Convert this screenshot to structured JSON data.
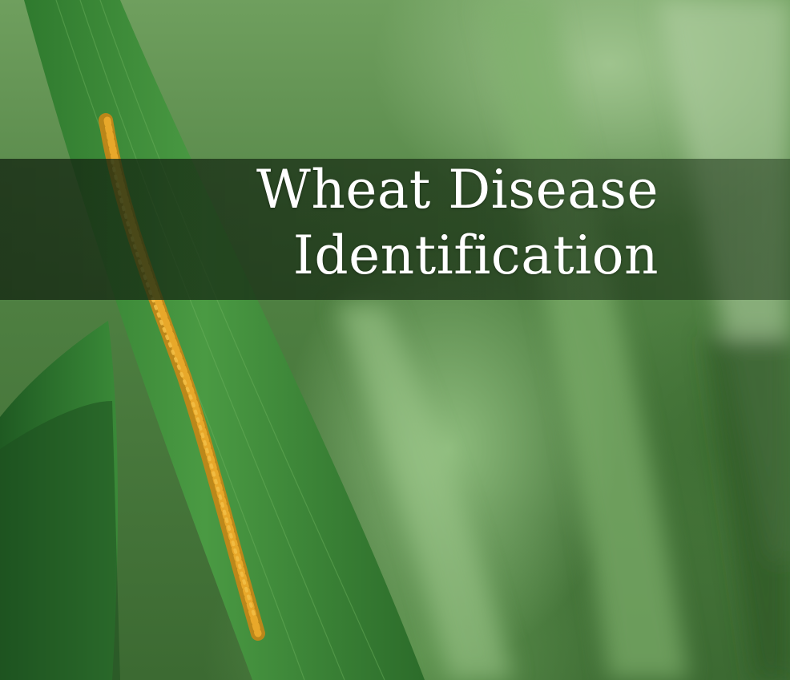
{
  "title": {
    "line1": "Wheat Disease",
    "line2": "Identification"
  },
  "colors": {
    "leaf": "#3f8a3a",
    "rust_pustules": "#d99a1e",
    "title_text": "#ffffff",
    "band": "#1d3519"
  },
  "image": {
    "subject": "rust-infected-wheat-leaf"
  }
}
